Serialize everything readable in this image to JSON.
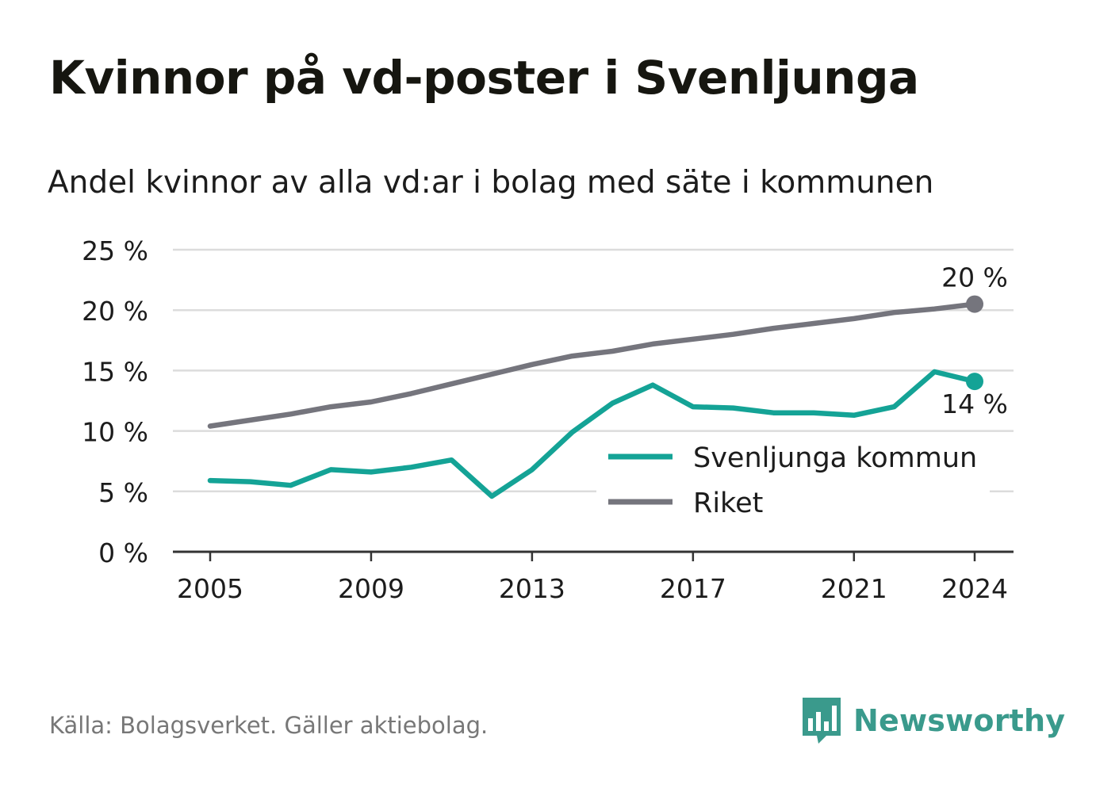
{
  "title": "Kvinnor på vd-poster i Svenljunga",
  "subtitle": "Andel kvinnor av alla vd:ar i bolag med säte i kommunen",
  "source": "Källa: Bolagsverket. Gäller aktiebolag.",
  "brand": {
    "name": "Newsworthy",
    "logo_icon": "bar-chart-speech-bubble-icon",
    "color": "#3a9a8c"
  },
  "colors": {
    "kommun": "#14a396",
    "riket": "#75757d",
    "grid": "#dcdcdc",
    "axis": "#333333"
  },
  "chart_data": {
    "type": "line",
    "x": [
      2005,
      2006,
      2007,
      2008,
      2009,
      2010,
      2011,
      2012,
      2013,
      2014,
      2015,
      2016,
      2017,
      2018,
      2019,
      2020,
      2021,
      2022,
      2023,
      2024
    ],
    "x_ticks": [
      "2005",
      "2009",
      "2013",
      "2017",
      "2021",
      "2024"
    ],
    "y_ticks": [
      "0 %",
      "5 %",
      "10 %",
      "15 %",
      "20 %",
      "25 %"
    ],
    "ylim": [
      0,
      25
    ],
    "grid": true,
    "legend_position": "bottom-right",
    "series": [
      {
        "name": "Svenljunga kommun",
        "color": "#14a396",
        "values": [
          5.9,
          5.8,
          5.5,
          6.8,
          6.6,
          7.0,
          7.6,
          4.6,
          6.8,
          9.9,
          12.3,
          13.8,
          12.0,
          11.9,
          11.5,
          11.5,
          11.3,
          12.0,
          14.9,
          14.1
        ],
        "end_label": "14 %"
      },
      {
        "name": "Riket",
        "color": "#75757d",
        "values": [
          10.4,
          10.9,
          11.4,
          12.0,
          12.4,
          13.1,
          13.9,
          14.7,
          15.5,
          16.2,
          16.6,
          17.2,
          17.6,
          18.0,
          18.5,
          18.9,
          19.3,
          19.8,
          20.1,
          20.5
        ],
        "end_label": "20 %"
      }
    ]
  }
}
